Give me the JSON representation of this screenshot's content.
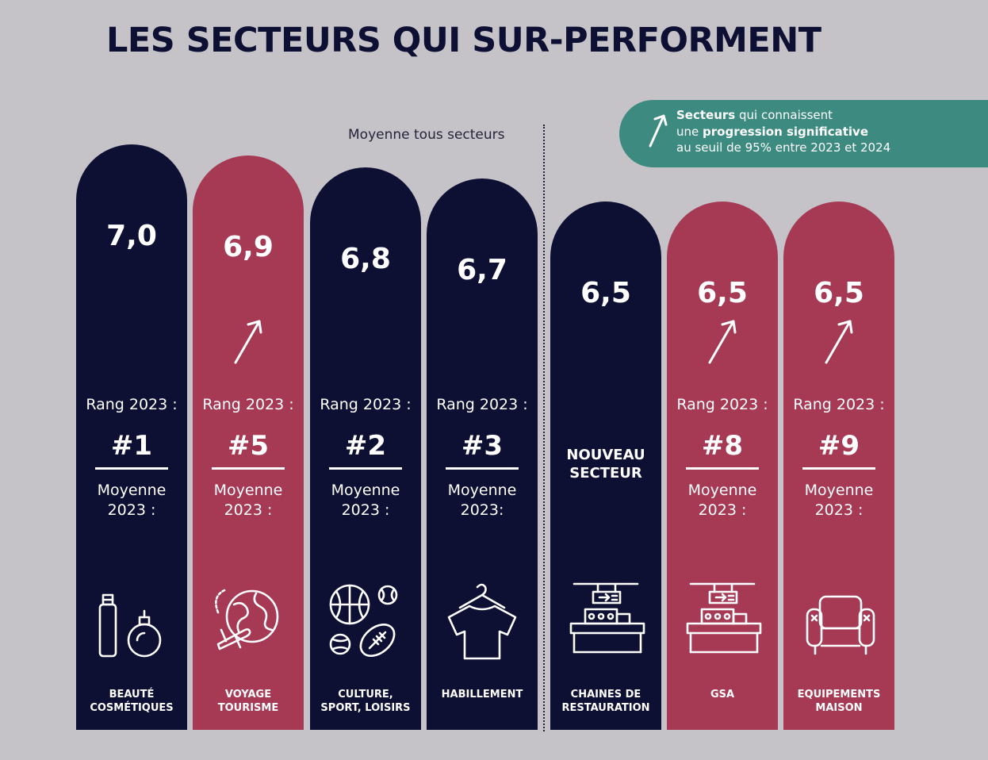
{
  "title": "LES SECTEURS QUI SUR-PERFORMENT",
  "average_label": "Moyenne tous secteurs",
  "legend": {
    "part1_bold": "Secteurs",
    "part1_rest": " qui connaissent",
    "part2_pre": "une ",
    "part2_bold": "progression significative",
    "line3": "au seuil de 95% entre 2023 et 2024"
  },
  "labels": {
    "rank_label": "Rang 2023 :",
    "avg_line1": "Moyenne",
    "avg_line2": "2023 :",
    "avg_line2_alt": "2023:",
    "new_sector_line1": "NOUVEAU",
    "new_sector_line2": "SECTEUR"
  },
  "colors": {
    "navy": "#0d1033",
    "red": "#a63a55",
    "legend_green": "#3c8a80",
    "background": "#c5c3c8"
  },
  "chart_data": {
    "type": "bar",
    "title": "LES SECTEURS QUI SUR-PERFORMENT",
    "categories": [
      "BEAUTÉ COSMÉTIQUES",
      "VOYAGE TOURISME",
      "CULTURE, SPORT, LOISIRS",
      "HABILLEMENT",
      "CHAINES DE RESTAURATION",
      "GSA",
      "EQUIPEMENTS MAISON"
    ],
    "values": [
      7.0,
      6.9,
      6.8,
      6.7,
      6.5,
      6.5,
      6.5
    ],
    "value_labels": [
      "7,0",
      "6,9",
      "6,8",
      "6,7",
      "6,5",
      "6,5",
      "6,5"
    ],
    "bars": [
      {
        "cat1": "BEAUTÉ",
        "cat2": "COSMÉTIQUES",
        "value": 7.0,
        "label": "7,0",
        "rank": "#1",
        "color": "navy",
        "significant": false,
        "icon": "cosmetics-icon"
      },
      {
        "cat1": "VOYAGE",
        "cat2": "TOURISME",
        "value": 6.9,
        "label": "6,9",
        "rank": "#5",
        "color": "red",
        "significant": true,
        "icon": "travel-globe-icon"
      },
      {
        "cat1": "CULTURE,",
        "cat2": "SPORT, LOISIRS",
        "value": 6.8,
        "label": "6,8",
        "rank": "#2",
        "color": "navy",
        "significant": false,
        "icon": "sports-balls-icon"
      },
      {
        "cat1": "HABILLEMENT",
        "cat2": "",
        "value": 6.7,
        "label": "6,7",
        "rank": "#3",
        "color": "navy",
        "significant": false,
        "icon": "tshirt-icon",
        "avg_alt": true
      },
      {
        "cat1": "CHAINES DE",
        "cat2": "RESTAURATION",
        "value": 6.5,
        "label": "6,5",
        "rank": "",
        "color": "navy",
        "significant": false,
        "new": true,
        "icon": "restaurant-counter-icon"
      },
      {
        "cat1": "GSA",
        "cat2": "",
        "value": 6.5,
        "label": "6,5",
        "rank": "#8",
        "color": "red",
        "significant": true,
        "icon": "shop-counter-icon"
      },
      {
        "cat1": "EQUIPEMENTS",
        "cat2": "MAISON",
        "value": 6.5,
        "label": "6,5",
        "rank": "#9",
        "color": "red",
        "significant": true,
        "icon": "armchair-icon"
      }
    ],
    "average_divider_after_index": 3
  }
}
